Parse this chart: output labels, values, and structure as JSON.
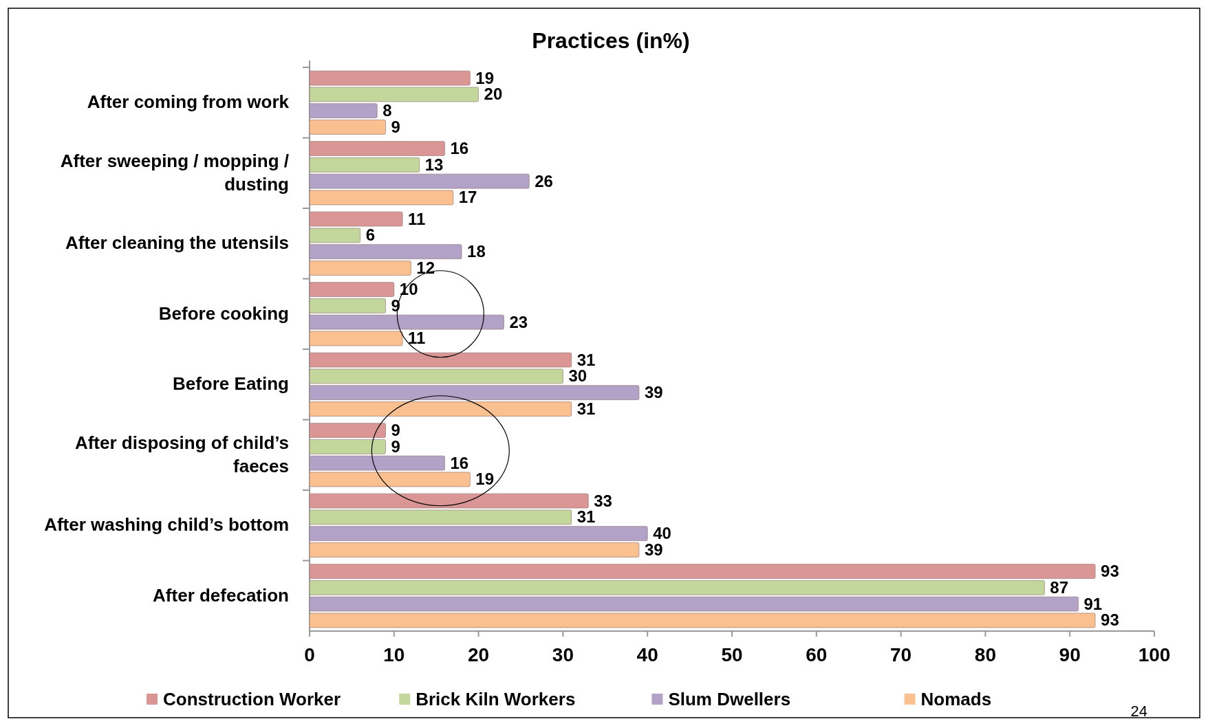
{
  "chart_data": {
    "type": "bar",
    "orientation": "horizontal",
    "title": "Practices (in%)",
    "categories": [
      "After coming from work",
      "After sweeping / mopping / dusting",
      "After cleaning the utensils",
      "Before cooking",
      "Before Eating",
      "After disposing of child’s faeces",
      "After washing child’s bottom",
      "After defecation"
    ],
    "series": [
      {
        "name": "Construction Worker",
        "color": "#d99694",
        "values": [
          19,
          16,
          11,
          10,
          31,
          9,
          33,
          93
        ]
      },
      {
        "name": "Brick Kiln Workers",
        "color": "#c3d69b",
        "values": [
          20,
          13,
          6,
          9,
          30,
          9,
          31,
          87
        ]
      },
      {
        "name": "Slum Dwellers",
        "color": "#b3a2c7",
        "values": [
          8,
          26,
          18,
          23,
          39,
          16,
          40,
          91
        ]
      },
      {
        "name": "Nomads",
        "color": "#fac090",
        "values": [
          9,
          17,
          12,
          11,
          31,
          19,
          39,
          93
        ]
      }
    ],
    "xlim": [
      0,
      100
    ],
    "xticks": [
      0,
      10,
      20,
      30,
      40,
      50,
      60,
      70,
      80,
      90,
      100
    ],
    "data_labels": true,
    "legend": "bottom",
    "grid": false,
    "annotations": [
      "24"
    ]
  }
}
